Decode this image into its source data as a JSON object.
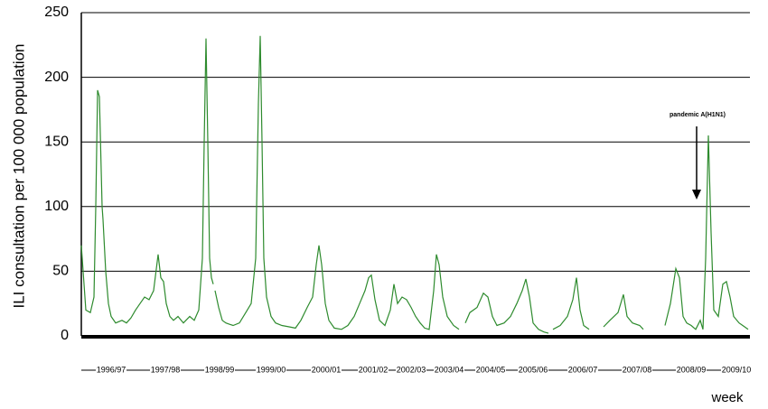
{
  "chart_data": {
    "type": "line",
    "y_label": "ILI consultation per 100 000 population",
    "x_label": "week",
    "annotation": "pandemic A(H1N1)",
    "color": "#2e8b2e",
    "grid": true,
    "ylim": [
      0,
      250
    ],
    "yticks": [
      0,
      50,
      100,
      150,
      200,
      250
    ],
    "xlim": [
      0,
      740
    ],
    "xticks": [
      {
        "value": 33,
        "label": "1996/97"
      },
      {
        "value": 93,
        "label": "1997/98"
      },
      {
        "value": 153,
        "label": "1998/99"
      },
      {
        "value": 210,
        "label": "1999/00"
      },
      {
        "value": 271,
        "label": "2000/01"
      },
      {
        "value": 323,
        "label": "2001/02"
      },
      {
        "value": 365,
        "label": "2002/03"
      },
      {
        "value": 407,
        "label": "2003/04"
      },
      {
        "value": 453,
        "label": "2004/05"
      },
      {
        "value": 500,
        "label": "2005/06"
      },
      {
        "value": 555,
        "label": "2006/07"
      },
      {
        "value": 615,
        "label": "2007/08"
      },
      {
        "value": 675,
        "label": "2008/09"
      },
      {
        "value": 725,
        "label": "2009/10"
      }
    ],
    "x": [
      0,
      5,
      10,
      14,
      16,
      18,
      20,
      23,
      24,
      27,
      30,
      33,
      38,
      45,
      50,
      55,
      60,
      65,
      70,
      75,
      80,
      85,
      88,
      91,
      94,
      98,
      102,
      107,
      113,
      120,
      125,
      130,
      134,
      136,
      138,
      140,
      142,
      144,
      146,
      147,
      148,
      152,
      156,
      160,
      168,
      175,
      182,
      188,
      193,
      196,
      198,
      200,
      202,
      205,
      210,
      215,
      222,
      230,
      237,
      243,
      250,
      256,
      260,
      263,
      266,
      270,
      274,
      280,
      288,
      295,
      302,
      308,
      314,
      318,
      321,
      325,
      330,
      336,
      342,
      346,
      350,
      355,
      360,
      365,
      370,
      375,
      380,
      385,
      390,
      393,
      396,
      400,
      405,
      412,
      418,
      422,
      425,
      430,
      438,
      445,
      450,
      455,
      460,
      468,
      475,
      482,
      488,
      492,
      496,
      500,
      506,
      512,
      517,
      518,
      522,
      530,
      538,
      544,
      548,
      552,
      556,
      562,
      563,
      578,
      585,
      594,
      600,
      604,
      610,
      618,
      622,
      623,
      646,
      652,
      658,
      662,
      666,
      670,
      675,
      680,
      685,
      688,
      691,
      694,
      697,
      700,
      705,
      710,
      714,
      718,
      722,
      728,
      732,
      738
    ],
    "values": [
      70,
      20,
      18,
      30,
      100,
      190,
      185,
      100,
      90,
      50,
      25,
      15,
      10,
      12,
      10,
      14,
      20,
      25,
      30,
      28,
      35,
      63,
      45,
      42,
      25,
      15,
      12,
      15,
      10,
      15,
      12,
      20,
      60,
      150,
      230,
      150,
      60,
      45,
      40,
      null,
      35,
      22,
      12,
      10,
      8,
      10,
      18,
      25,
      60,
      180,
      232,
      150,
      60,
      30,
      15,
      10,
      8,
      7,
      6,
      12,
      22,
      30,
      55,
      70,
      55,
      25,
      12,
      6,
      5,
      8,
      15,
      25,
      35,
      45,
      47,
      28,
      12,
      8,
      20,
      40,
      25,
      30,
      28,
      22,
      15,
      10,
      6,
      5,
      35,
      63,
      55,
      30,
      15,
      8,
      5,
      null,
      10,
      18,
      22,
      33,
      30,
      15,
      8,
      10,
      15,
      25,
      35,
      44,
      30,
      10,
      5,
      3,
      2,
      null,
      5,
      8,
      15,
      28,
      45,
      20,
      8,
      5,
      null,
      7,
      12,
      18,
      32,
      15,
      10,
      8,
      5,
      null,
      8,
      25,
      52,
      45,
      15,
      10,
      8,
      5,
      12,
      5,
      60,
      155,
      80,
      20,
      15,
      40,
      42,
      30,
      15,
      10,
      8,
      5
    ]
  }
}
